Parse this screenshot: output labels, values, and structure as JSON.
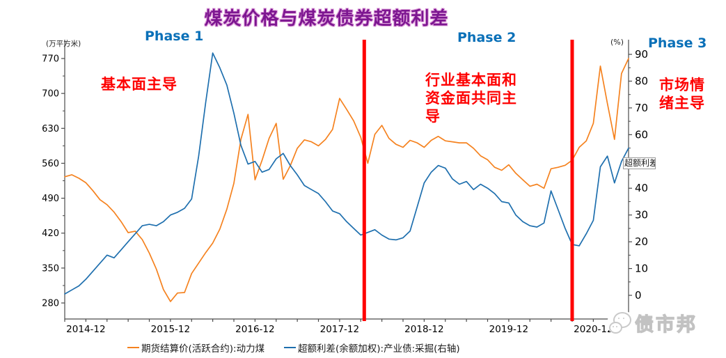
{
  "title": "煤炭价格与煤炭债券超额利差",
  "chart_data": {
    "type": "line",
    "title": "煤炭价格与煤炭债券超额利差",
    "x_interval": "monthly",
    "x_start": "2014-09",
    "x_end": "2021-05",
    "x_tick_labels": [
      "2014-12",
      "2015-12",
      "2016-12",
      "2017-12",
      "2018-12",
      "2019-12",
      "2020-12"
    ],
    "left_axis": {
      "unit": "(万平方米)",
      "ticks": [
        280,
        350,
        420,
        490,
        560,
        630,
        700,
        770
      ],
      "min": 280,
      "max": 770
    },
    "right_axis": {
      "unit": "(%)",
      "ticks": [
        0,
        10,
        20,
        30,
        40,
        50,
        60,
        70,
        80,
        90
      ],
      "min": 0,
      "max": 90
    },
    "grid": false,
    "legend_position": "bottom",
    "series": [
      {
        "name": "期货结算价(活跃合约):动力煤",
        "axis": "left",
        "color": "#f5821f",
        "values": [
          533,
          537,
          530,
          521,
          505,
          487,
          477,
          462,
          443,
          421,
          424,
          407,
          380,
          348,
          307,
          283,
          300,
          301,
          339,
          360,
          381,
          400,
          428,
          468,
          520,
          608,
          658,
          527,
          566,
          610,
          640,
          528,
          555,
          590,
          607,
          603,
          595,
          608,
          628,
          690,
          668,
          645,
          612,
          560,
          618,
          636,
          610,
          598,
          592,
          606,
          601,
          592,
          606,
          614,
          605,
          603,
          601,
          601,
          590,
          575,
          567,
          552,
          546,
          557,
          540,
          527,
          514,
          518,
          510,
          549,
          552,
          556,
          566,
          592,
          605,
          640,
          755,
          680,
          608,
          740,
          770
        ]
      },
      {
        "name": "超额利差(余额加权):产业债:采掘(右轴)",
        "axis": "right",
        "color": "#1e6fae",
        "values": [
          0.5,
          2,
          3.5,
          6,
          9,
          12,
          15,
          14,
          17,
          20,
          23,
          26,
          26.5,
          26,
          27.5,
          30,
          31,
          32.5,
          36,
          52,
          72,
          90.5,
          85,
          78.5,
          68,
          56,
          49,
          50,
          46,
          47,
          51,
          53,
          48.5,
          45,
          41,
          39.5,
          38,
          35,
          31.5,
          30.5,
          27.5,
          25,
          22.5,
          23.5,
          24.5,
          22.5,
          21,
          20.7,
          21.5,
          24,
          33,
          42,
          46,
          48.5,
          47.5,
          43.5,
          41.5,
          42.5,
          39.5,
          41.5,
          40,
          38,
          35,
          34.5,
          30,
          27.5,
          26,
          25.5,
          27,
          39,
          32,
          25,
          19,
          18.5,
          23,
          28,
          48,
          52,
          42,
          50,
          55
        ]
      }
    ],
    "phase_dividers": {
      "color": "#ff0000",
      "x_month_index": [
        42.5,
        72
      ]
    }
  },
  "annotations": {
    "phase1": {
      "label": "Phase 1",
      "note": "基本面主导"
    },
    "phase2": {
      "label": "Phase 2",
      "note_lines": [
        "行业基本面和",
        "资金面共同主",
        "导"
      ]
    },
    "phase3": {
      "label": "Phase 3",
      "note_lines": [
        "市场情",
        "绪主导"
      ]
    },
    "colors": {
      "phase_label": "#0a70b8",
      "note_red": "#fe0000"
    }
  },
  "tooltip_label": "超额利差",
  "watermark": {
    "text": "债市邦",
    "icon": "wechat-icon"
  }
}
